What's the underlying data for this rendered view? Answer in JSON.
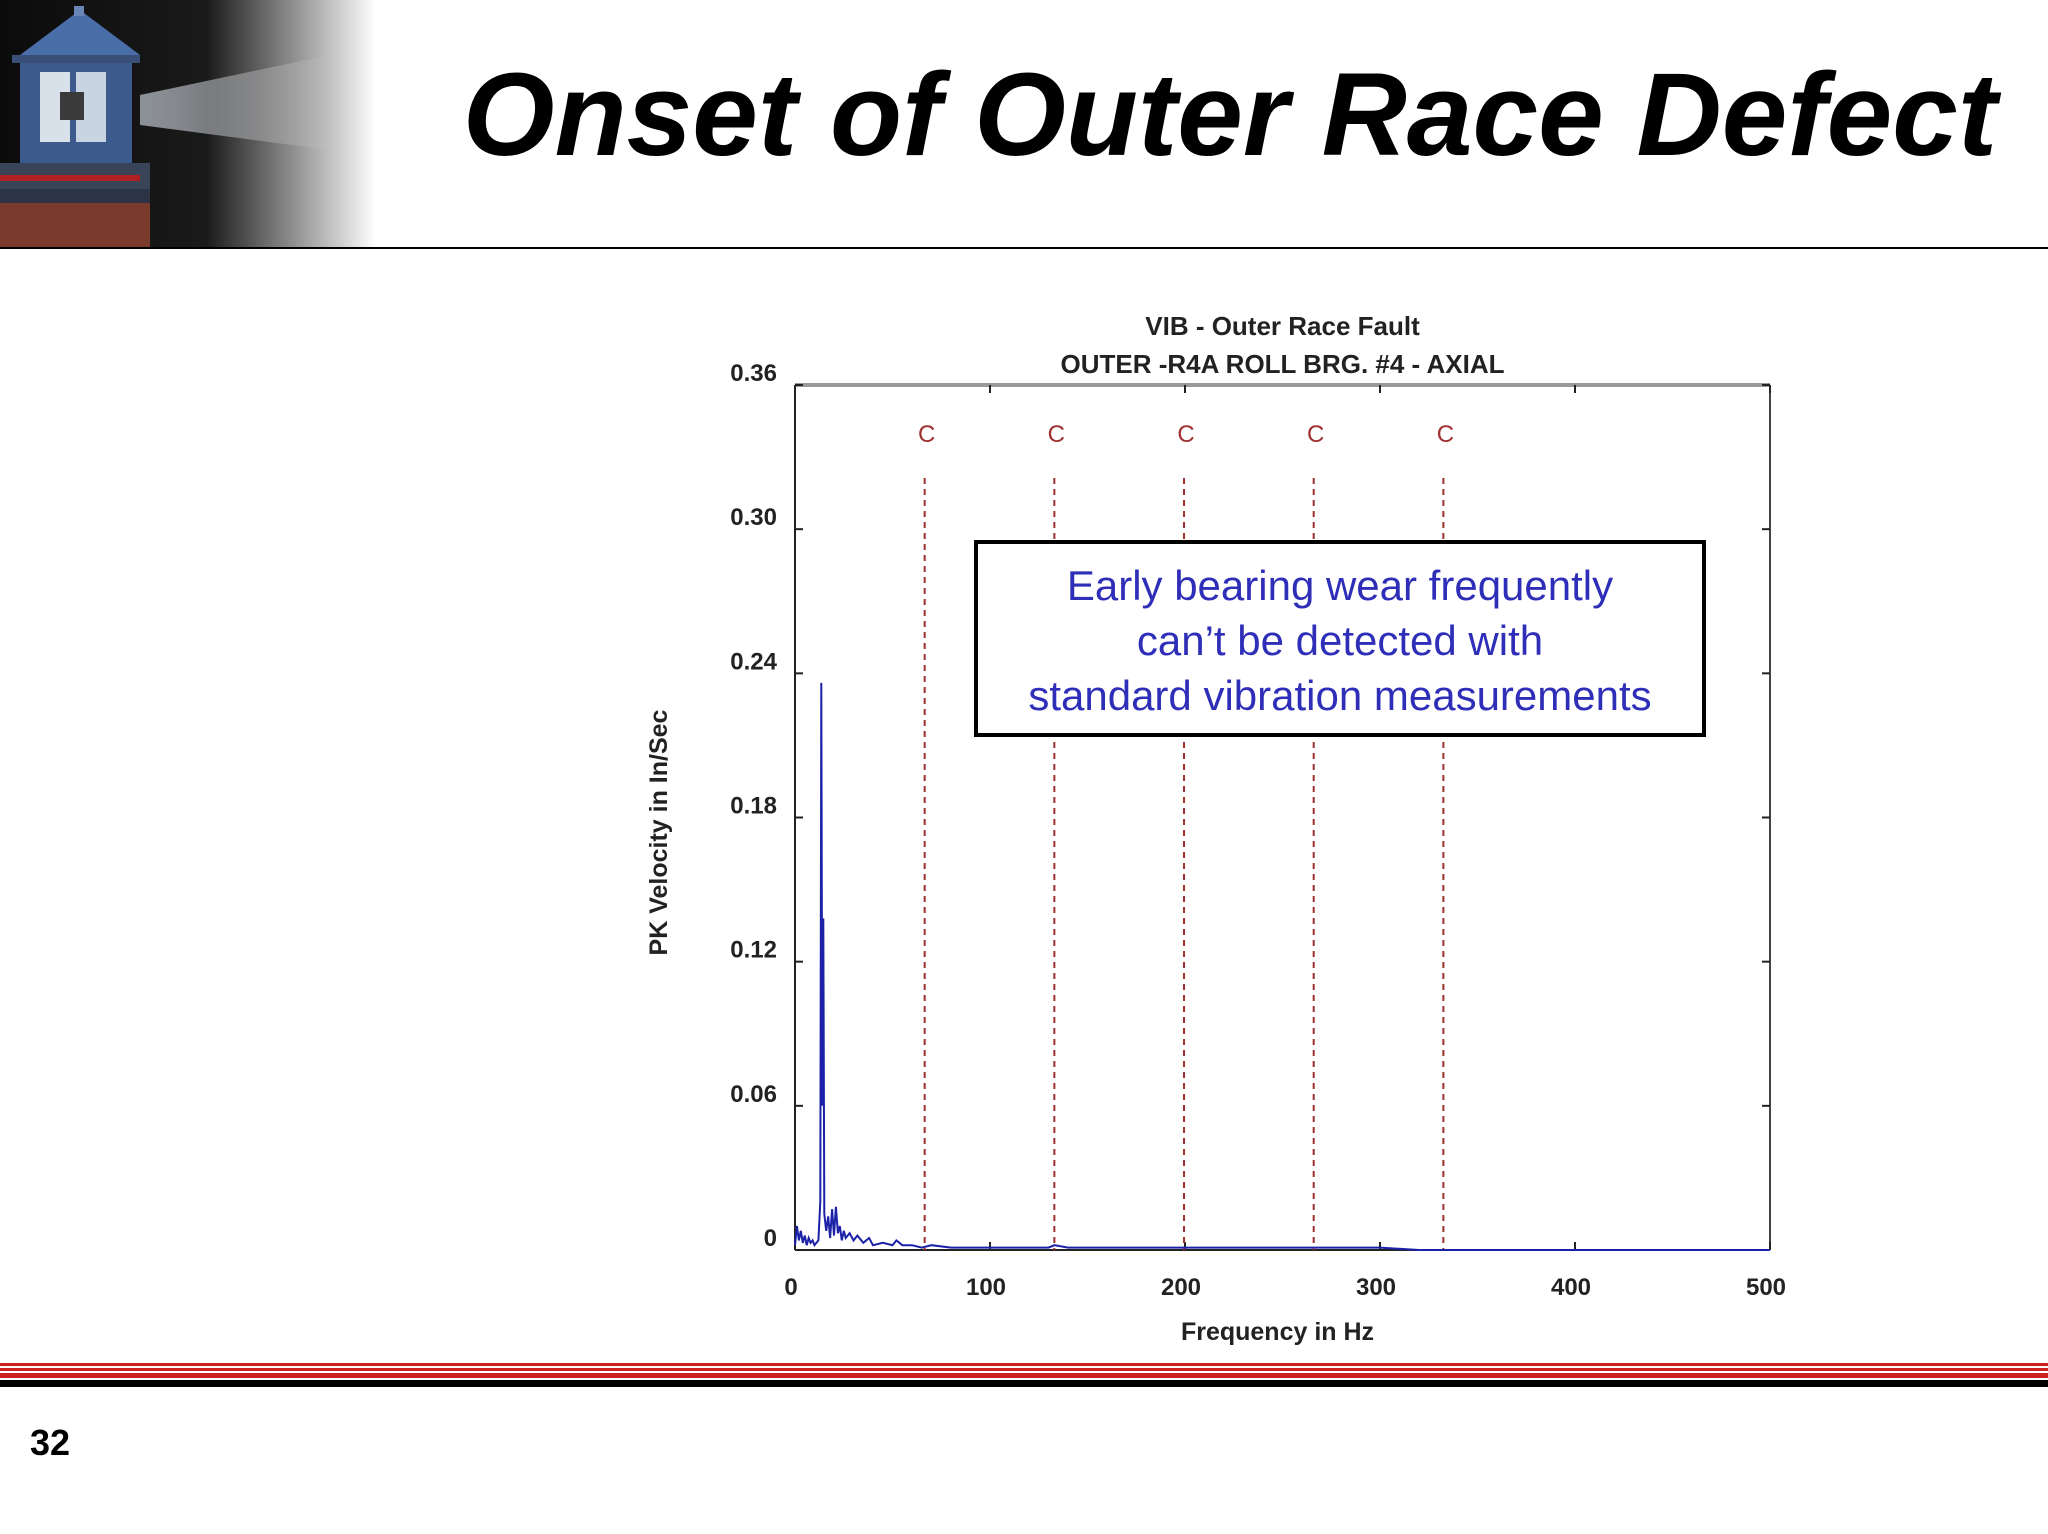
{
  "slide": {
    "title": "Onset of Outer Race Defect",
    "page_number": "32"
  },
  "colors": {
    "spectrum": "#1c22a8",
    "marker": "#a03030",
    "annotation_text": "#2e2eb8",
    "footer_red": "#cc1f1f"
  },
  "chart_data": {
    "type": "line",
    "title": "VIB - Outer Race Fault",
    "subtitle": "OUTER -R4A ROLL BRG. #4 - AXIAL",
    "xlabel": "Frequency in Hz",
    "ylabel": "PK Velocity in In/Sec",
    "xlim": [
      0,
      500
    ],
    "ylim": [
      0,
      0.36
    ],
    "x_ticks": [
      "0",
      "100",
      "200",
      "300",
      "400",
      "500"
    ],
    "y_ticks": [
      "0",
      "0.06",
      "0.12",
      "0.18",
      "0.24",
      "0.30",
      "0.36"
    ],
    "grid": false,
    "series": [
      {
        "x": [
          0,
          1,
          2,
          3,
          4,
          5,
          6,
          7,
          8,
          9,
          10,
          11,
          12,
          13,
          13.5,
          14,
          14.5,
          15,
          16,
          17,
          18,
          19,
          20,
          21,
          22,
          23,
          24,
          25,
          26,
          28,
          30,
          32,
          35,
          38,
          40,
          45,
          50,
          52,
          55,
          60,
          65,
          70,
          80,
          90,
          100,
          110,
          120,
          130,
          133,
          140,
          150,
          160,
          175,
          190,
          200,
          220,
          240,
          260,
          280,
          300,
          320,
          340,
          360,
          380,
          400,
          450,
          500
        ],
        "y": [
          0.002,
          0.01,
          0.004,
          0.008,
          0.003,
          0.006,
          0.002,
          0.005,
          0.003,
          0.004,
          0.002,
          0.003,
          0.004,
          0.02,
          0.236,
          0.06,
          0.138,
          0.015,
          0.008,
          0.014,
          0.005,
          0.017,
          0.006,
          0.018,
          0.007,
          0.01,
          0.004,
          0.008,
          0.005,
          0.007,
          0.004,
          0.006,
          0.003,
          0.005,
          0.002,
          0.003,
          0.002,
          0.004,
          0.002,
          0.002,
          0.001,
          0.002,
          0.001,
          0.001,
          0.001,
          0.001,
          0.001,
          0.001,
          0.002,
          0.001,
          0.001,
          0.001,
          0.001,
          0.001,
          0.001,
          0.001,
          0.001,
          0.001,
          0.001,
          0.001,
          0.0,
          0.0,
          0.0,
          0.0,
          0.0,
          0.0,
          0.0
        ]
      }
    ],
    "markers": {
      "label": "C",
      "x": [
        66.5,
        133,
        199.5,
        266,
        332.5
      ]
    },
    "annotation": {
      "lines": [
        "Early bearing wear frequently",
        "can’t be detected with",
        "standard vibration measurements"
      ]
    }
  }
}
